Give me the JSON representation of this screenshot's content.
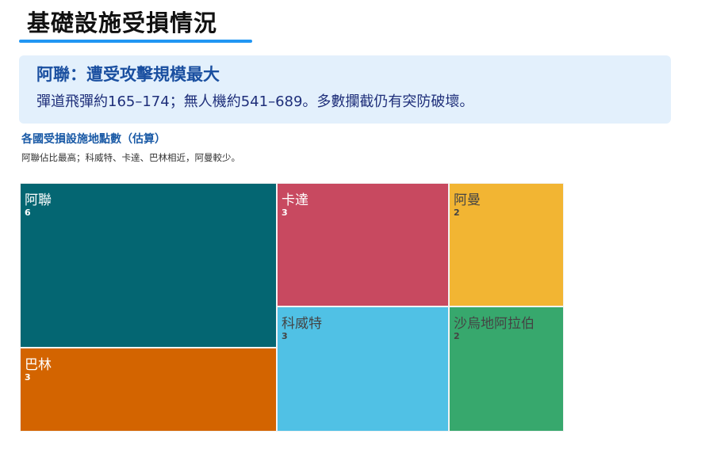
{
  "title": "基礎設施受損情況",
  "callout": {
    "heading": "阿聯：遭受攻擊規模最大",
    "body": "彈道飛彈約165–174；無人機約541–689。多數攔截仍有突防破壞。"
  },
  "chart_data": {
    "type": "treemap",
    "title": "各國受損設施地點數（估算）",
    "subtitle": "阿聯佔比最高；科威特、卡達、巴林相近，阿曼較少。",
    "items": [
      {
        "label": "阿聯",
        "value": 6,
        "color": "#046672"
      },
      {
        "label": "巴林",
        "value": 3,
        "color": "#d36400"
      },
      {
        "label": "卡達",
        "value": 3,
        "color": "#c84960"
      },
      {
        "label": "科威特",
        "value": 3,
        "color": "#50c1e5"
      },
      {
        "label": "阿曼",
        "value": 2,
        "color": "#f2b533"
      },
      {
        "label": "沙烏地阿拉伯",
        "value": 2,
        "color": "#37a86d"
      }
    ]
  }
}
